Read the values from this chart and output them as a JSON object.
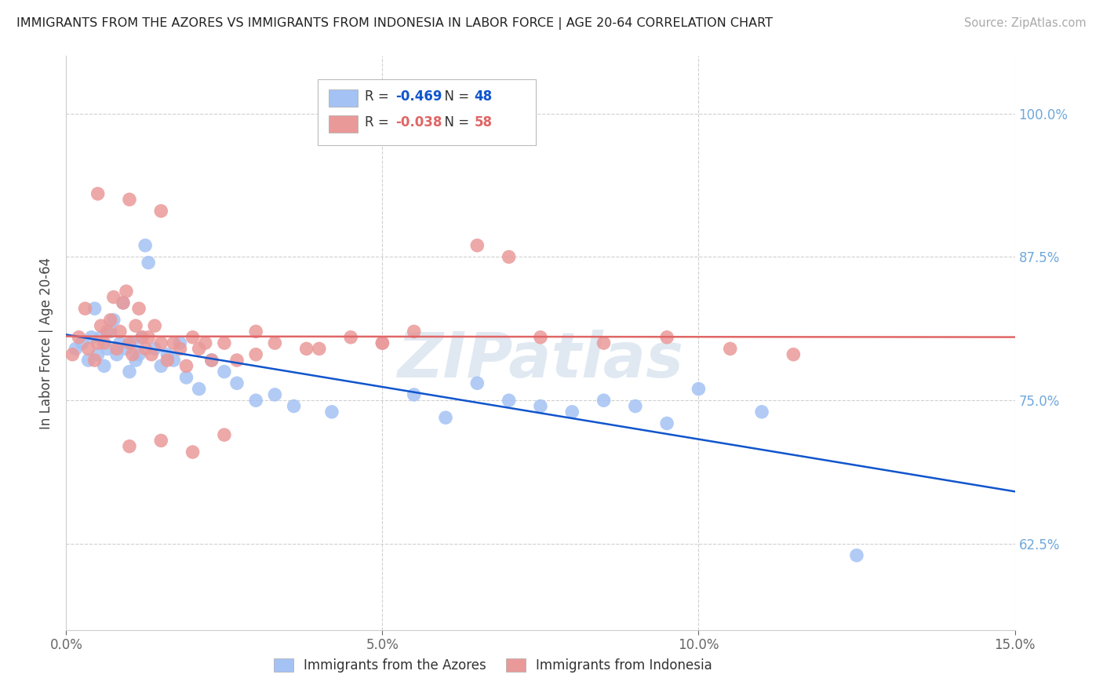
{
  "title": "IMMIGRANTS FROM THE AZORES VS IMMIGRANTS FROM INDONESIA IN LABOR FORCE | AGE 20-64 CORRELATION CHART",
  "source": "Source: ZipAtlas.com",
  "ylabel": "In Labor Force | Age 20-64",
  "legend_label_azores": "Immigrants from the Azores",
  "legend_label_indonesia": "Immigrants from Indonesia",
  "R_azores": -0.469,
  "N_azores": 48,
  "R_indonesia": -0.038,
  "N_indonesia": 58,
  "azores_color": "#a4c2f4",
  "indonesia_color": "#ea9999",
  "azores_line_color": "#1155cc",
  "indonesia_line_color": "#e06666",
  "xlim": [
    0.0,
    15.0
  ],
  "ylim": [
    55.0,
    105.0
  ],
  "yticks": [
    62.5,
    75.0,
    87.5,
    100.0
  ],
  "xticks": [
    0.0,
    5.0,
    10.0,
    15.0
  ],
  "azores_x": [
    0.15,
    0.25,
    0.35,
    0.4,
    0.45,
    0.5,
    0.55,
    0.6,
    0.65,
    0.7,
    0.75,
    0.8,
    0.85,
    0.9,
    0.95,
    1.0,
    1.05,
    1.1,
    1.15,
    1.2,
    1.25,
    1.3,
    1.4,
    1.5,
    1.6,
    1.7,
    1.8,
    1.9,
    2.1,
    2.3,
    2.5,
    2.7,
    3.0,
    3.3,
    3.6,
    4.2,
    5.5,
    6.0,
    6.5,
    7.0,
    7.5,
    8.0,
    8.5,
    9.0,
    9.5,
    10.0,
    11.0,
    12.5
  ],
  "azores_y": [
    79.5,
    80.0,
    78.5,
    80.5,
    83.0,
    79.0,
    80.5,
    78.0,
    79.5,
    81.0,
    82.0,
    79.0,
    80.0,
    83.5,
    79.5,
    77.5,
    80.0,
    78.5,
    79.0,
    80.5,
    88.5,
    87.0,
    79.5,
    78.0,
    79.0,
    78.5,
    80.0,
    77.0,
    76.0,
    78.5,
    77.5,
    76.5,
    75.0,
    75.5,
    74.5,
    74.0,
    75.5,
    73.5,
    76.5,
    75.0,
    74.5,
    74.0,
    75.0,
    74.5,
    73.0,
    76.0,
    74.0,
    61.5
  ],
  "indonesia_x": [
    0.1,
    0.2,
    0.3,
    0.35,
    0.45,
    0.5,
    0.55,
    0.6,
    0.65,
    0.7,
    0.75,
    0.8,
    0.85,
    0.9,
    0.95,
    1.0,
    1.05,
    1.1,
    1.15,
    1.2,
    1.25,
    1.3,
    1.35,
    1.4,
    1.5,
    1.6,
    1.7,
    1.8,
    1.9,
    2.0,
    2.1,
    2.2,
    2.3,
    2.5,
    2.7,
    3.0,
    3.3,
    3.8,
    4.5,
    5.0,
    5.5,
    6.5,
    7.0,
    7.5,
    8.5,
    9.5,
    10.5,
    11.5,
    1.0,
    1.5,
    2.0,
    2.5,
    3.0,
    4.0,
    5.0,
    0.5,
    1.0,
    1.5
  ],
  "indonesia_y": [
    79.0,
    80.5,
    83.0,
    79.5,
    78.5,
    80.0,
    81.5,
    80.0,
    81.0,
    82.0,
    84.0,
    79.5,
    81.0,
    83.5,
    84.5,
    80.0,
    79.0,
    81.5,
    83.0,
    80.5,
    79.5,
    80.5,
    79.0,
    81.5,
    80.0,
    78.5,
    80.0,
    79.5,
    78.0,
    80.5,
    79.5,
    80.0,
    78.5,
    80.0,
    78.5,
    81.0,
    80.0,
    79.5,
    80.5,
    80.0,
    81.0,
    88.5,
    87.5,
    80.5,
    80.0,
    80.5,
    79.5,
    79.0,
    71.0,
    71.5,
    70.5,
    72.0,
    79.0,
    79.5,
    80.0,
    93.0,
    92.5,
    91.5
  ],
  "watermark_text": "ZIPatlas",
  "background_color": "#ffffff",
  "grid_color": "#d0d0d0",
  "tick_label_color_right": "#6fa8dc",
  "tick_label_color_bottom": "#666666"
}
